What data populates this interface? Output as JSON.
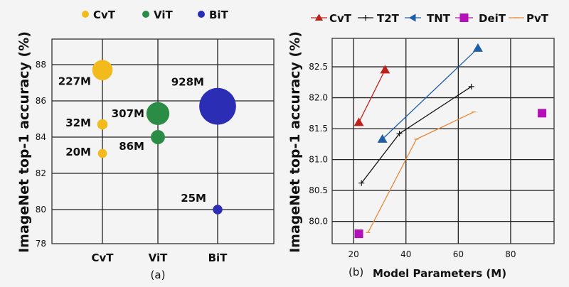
{
  "chart_data": [
    {
      "type": "scatter",
      "subtitle": "(a)",
      "ylabel": "ImageNet top-1 accuracy (%)",
      "xlabel": "",
      "categories": [
        "CvT",
        "ViT",
        "BiT"
      ],
      "ylim": [
        78,
        89.4
      ],
      "yticks": [
        78,
        80,
        82,
        84,
        86,
        88
      ],
      "grid": true,
      "legend_placement": "top",
      "series": [
        {
          "name": "CvT",
          "color": "#f2bb1b",
          "points": [
            {
              "category": "CvT",
              "y": 87.7,
              "size_label": "227M",
              "params_m": 227
            },
            {
              "category": "CvT",
              "y": 84.7,
              "size_label": "32M",
              "params_m": 32
            },
            {
              "category": "CvT",
              "y": 83.1,
              "size_label": "20M",
              "params_m": 20
            }
          ]
        },
        {
          "name": "ViT",
          "color": "#2a8c45",
          "points": [
            {
              "category": "ViT",
              "y": 85.3,
              "size_label": "307M",
              "params_m": 307
            },
            {
              "category": "ViT",
              "y": 84.0,
              "size_label": "86M",
              "params_m": 86
            }
          ]
        },
        {
          "name": "BiT",
          "color": "#2b2db5",
          "points": [
            {
              "category": "BiT",
              "y": 85.7,
              "size_label": "928M",
              "params_m": 928
            },
            {
              "category": "BiT",
              "y": 80.0,
              "size_label": "25M",
              "params_m": 25
            }
          ]
        }
      ]
    },
    {
      "type": "line",
      "subtitle": "(b)",
      "xlabel": "Model Parameters (M)",
      "ylabel": "ImageNet top-1 accuracy (%)",
      "xlim": [
        11.8,
        96.6
      ],
      "ylim": [
        79.64,
        82.96
      ],
      "xticks": [
        20,
        40,
        60,
        80
      ],
      "yticks": [
        "80.0",
        "80.5",
        "81.0",
        "81.5",
        "82.0",
        "82.5"
      ],
      "grid": true,
      "legend_placement": "top",
      "series": [
        {
          "name": "CvT",
          "color": "#c0201c",
          "marker": "triangle-up",
          "points": [
            [
              22,
              81.6
            ],
            [
              32,
              82.45
            ]
          ]
        },
        {
          "name": "T2T",
          "color": "#111111",
          "marker": "plus",
          "points": [
            [
              23,
              80.62
            ],
            [
              37.5,
              81.42
            ],
            [
              65,
              82.18
            ]
          ]
        },
        {
          "name": "TNT",
          "color": "#1f5fa8",
          "marker": "triangle-left",
          "points": [
            [
              31,
              81.33
            ],
            [
              67.5,
              82.8
            ]
          ]
        },
        {
          "name": "DeiT",
          "color": "#b40fb8",
          "marker": "square",
          "points": [
            [
              22,
              79.8
            ],
            [
              92,
              81.75
            ]
          ]
        },
        {
          "name": "PvT",
          "color": "#e8893a",
          "marker": "tick",
          "points": [
            [
              25.5,
              79.82
            ],
            [
              44,
              81.33
            ],
            [
              66,
              81.77
            ]
          ]
        }
      ]
    }
  ]
}
